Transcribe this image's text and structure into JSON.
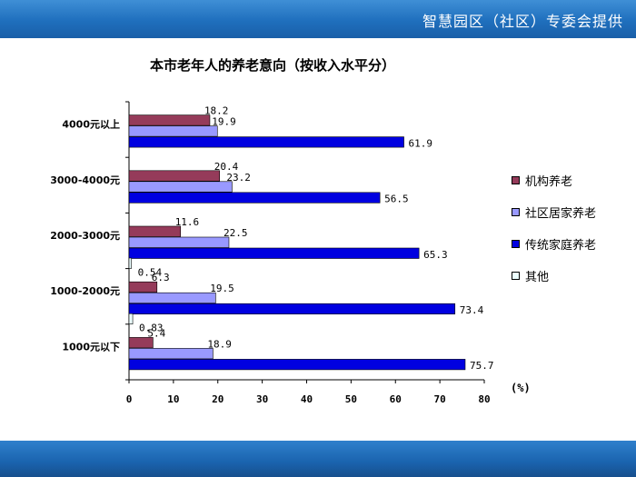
{
  "header": {
    "title": "智慧园区（社区）专委会提供"
  },
  "chart_data": {
    "type": "bar",
    "orientation": "horizontal",
    "title": "本市老年人的养老意向（按收入水平分）",
    "xlabel": "",
    "ylabel": "",
    "unit_label": "(%)",
    "xlim": [
      0,
      80
    ],
    "x_ticks": [
      0,
      10,
      20,
      30,
      40,
      50,
      60,
      70,
      80
    ],
    "grid": false,
    "legend_position": "right",
    "categories": [
      "4000元以上",
      "3000-4000元",
      "2000-3000元",
      "1000-2000元",
      "1000元以下"
    ],
    "series": [
      {
        "name": "机构养老",
        "color": "#953b5a",
        "values": [
          18.2,
          20.4,
          11.6,
          6.3,
          5.4
        ],
        "labels": [
          "18.2",
          "20.4",
          "11.6",
          "6.3",
          "5.4"
        ]
      },
      {
        "name": "社区居家养老",
        "color": "#9999ff",
        "values": [
          19.9,
          23.2,
          22.5,
          19.5,
          18.9
        ],
        "labels": [
          "19.9",
          "23.2",
          "22.5",
          "19.5",
          "18.9"
        ]
      },
      {
        "name": "传统家庭养老",
        "color": "#0000e0",
        "values": [
          61.9,
          56.5,
          65.3,
          73.4,
          75.7
        ],
        "labels": [
          "61.9",
          "56.5",
          "65.3",
          "73.4",
          "75.7"
        ]
      },
      {
        "name": "其他",
        "color": "#ecffff",
        "values": [
          null,
          null,
          0.54,
          0.83,
          null
        ],
        "labels": [
          "",
          "",
          "0.54",
          "0.83",
          ""
        ]
      }
    ]
  }
}
